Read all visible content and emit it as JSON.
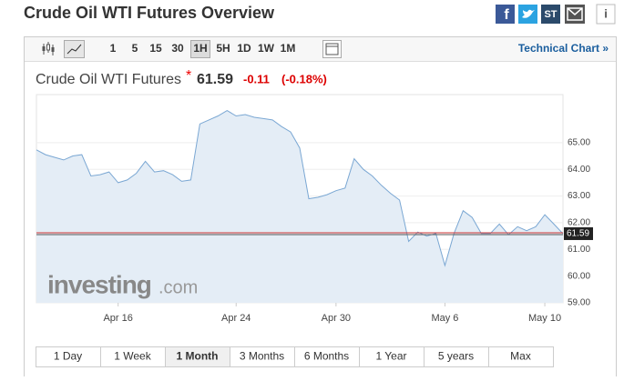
{
  "header": {
    "title": "Crude Oil WTI Futures Overview",
    "icons": {
      "facebook": "f",
      "stocktwits": "ST",
      "info": "i"
    }
  },
  "toolbar": {
    "intervals": [
      "1",
      "5",
      "15",
      "30",
      "1H",
      "5H",
      "1D",
      "1W",
      "1M"
    ],
    "active_interval": "1H",
    "link": "Technical Chart »"
  },
  "quote": {
    "name": "Crude Oil WTI Futures",
    "marker": "*",
    "price": "61.59",
    "change": "-0.11",
    "change_pct": "(-0.18%)"
  },
  "watermark": {
    "brand": "investing",
    "domain": ".com"
  },
  "chart_data": {
    "type": "area",
    "color": "#7aa7d3",
    "fill": "#e4edf6",
    "categories": [
      null,
      null,
      null,
      null,
      null,
      null,
      null,
      null,
      null,
      "Apr 16",
      null,
      null,
      null,
      null,
      null,
      null,
      null,
      null,
      null,
      null,
      null,
      null,
      "Apr 24",
      null,
      null,
      null,
      null,
      null,
      null,
      null,
      null,
      null,
      null,
      "Apr 30",
      null,
      null,
      null,
      null,
      null,
      null,
      null,
      null,
      null,
      null,
      null,
      "May 6",
      null,
      null,
      null,
      null,
      null,
      null,
      null,
      null,
      null,
      null,
      "May 10",
      null,
      null
    ],
    "values": [
      64.73,
      64.55,
      64.45,
      64.35,
      64.5,
      64.55,
      63.75,
      63.8,
      63.9,
      63.5,
      63.6,
      63.85,
      64.3,
      63.9,
      63.95,
      63.8,
      63.55,
      63.6,
      65.7,
      65.85,
      66.0,
      66.2,
      66.0,
      66.05,
      65.95,
      65.9,
      65.85,
      65.6,
      65.4,
      64.8,
      62.9,
      62.95,
      63.05,
      63.2,
      63.3,
      64.4,
      64.0,
      63.75,
      63.4,
      63.1,
      62.85,
      61.3,
      61.65,
      61.5,
      61.6,
      60.4,
      61.6,
      62.45,
      62.2,
      61.6,
      61.6,
      61.95,
      61.55,
      61.85,
      61.7,
      61.85,
      62.3,
      61.95,
      61.59
    ],
    "ylim": [
      59,
      66.8
    ],
    "yticks": [
      {
        "value": 59,
        "label": "59.00"
      },
      {
        "value": 60,
        "label": "60.00"
      },
      {
        "value": 61,
        "label": "61.00"
      },
      {
        "value": 62,
        "label": "62.00"
      },
      {
        "value": 63,
        "label": "63.00"
      },
      {
        "value": 64,
        "label": "64.00"
      },
      {
        "value": 65,
        "label": "65.00"
      }
    ],
    "last_value": {
      "value": 61.59,
      "label": "61.59"
    }
  },
  "ranges": {
    "items": [
      "1 Day",
      "1 Week",
      "1 Month",
      "3 Months",
      "6 Months",
      "1 Year",
      "5 years",
      "Max"
    ],
    "active": "1 Month"
  }
}
